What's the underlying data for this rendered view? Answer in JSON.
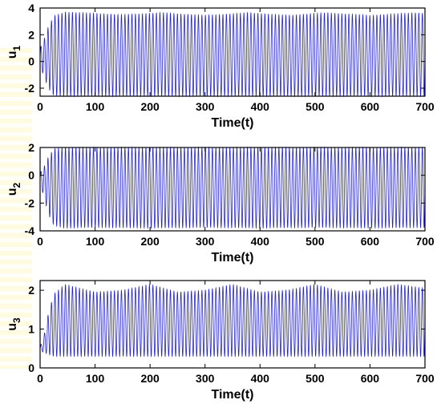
{
  "chart_data": [
    {
      "type": "line",
      "ylabel": "u",
      "ylabel_sub": "1",
      "xlabel": "Time(t)",
      "xlim": [
        0,
        700
      ],
      "ylim": [
        -2.6,
        4
      ],
      "xticks": [
        0,
        100,
        200,
        300,
        400,
        500,
        600,
        700
      ],
      "yticks": [
        -2,
        0,
        2,
        4
      ],
      "grid": false,
      "series": [
        {
          "color": "#2222cc",
          "cycles": 110,
          "upper_envelope": [
            [
              0,
              1.0
            ],
            [
              6,
              1.5
            ],
            [
              15,
              2.6
            ],
            [
              25,
              3.4
            ],
            [
              45,
              3.7
            ],
            [
              100,
              3.6
            ],
            [
              150,
              3.5
            ],
            [
              220,
              3.65
            ],
            [
              300,
              3.45
            ],
            [
              380,
              3.65
            ],
            [
              450,
              3.45
            ],
            [
              520,
              3.65
            ],
            [
              600,
              3.45
            ],
            [
              680,
              3.65
            ],
            [
              700,
              3.6
            ]
          ],
          "lower_envelope": [
            [
              0,
              -0.3
            ],
            [
              6,
              -1.0
            ],
            [
              15,
              -2.0
            ],
            [
              25,
              -2.55
            ],
            [
              45,
              -2.6
            ],
            [
              700,
              -2.6
            ]
          ]
        }
      ]
    },
    {
      "type": "line",
      "ylabel": "u",
      "ylabel_sub": "2",
      "xlabel": "Time(t)",
      "xlim": [
        0,
        700
      ],
      "ylim": [
        -4,
        2
      ],
      "xticks": [
        0,
        100,
        200,
        300,
        400,
        500,
        600,
        700
      ],
      "yticks": [
        -4,
        -2,
        0,
        2
      ],
      "grid": false,
      "series": [
        {
          "color": "#2222cc",
          "cycles": 110,
          "upper_envelope": [
            [
              0,
              0.2
            ],
            [
              6,
              0.5
            ],
            [
              15,
              1.3
            ],
            [
              25,
              1.9
            ],
            [
              45,
              2.0
            ],
            [
              700,
              2.0
            ]
          ],
          "lower_envelope": [
            [
              0,
              -0.6
            ],
            [
              6,
              -1.4
            ],
            [
              15,
              -2.8
            ],
            [
              25,
              -3.6
            ],
            [
              45,
              -3.8
            ],
            [
              100,
              -3.75
            ],
            [
              200,
              -3.8
            ],
            [
              300,
              -3.75
            ],
            [
              400,
              -3.8
            ],
            [
              500,
              -3.75
            ],
            [
              600,
              -3.8
            ],
            [
              700,
              -3.75
            ]
          ]
        }
      ]
    },
    {
      "type": "line",
      "ylabel": "u",
      "ylabel_sub": "3",
      "xlabel": "Time(t)",
      "xlim": [
        0,
        700
      ],
      "ylim": [
        0,
        2.25
      ],
      "xticks": [
        0,
        100,
        200,
        300,
        400,
        500,
        600,
        700
      ],
      "yticks": [
        0,
        1,
        2
      ],
      "grid": false,
      "series": [
        {
          "color": "#2222cc",
          "cycles": 110,
          "upper_envelope": [
            [
              0,
              0.55
            ],
            [
              6,
              0.75
            ],
            [
              15,
              1.4
            ],
            [
              25,
              1.9
            ],
            [
              45,
              2.15
            ],
            [
              100,
              1.95
            ],
            [
              150,
              2.0
            ],
            [
              200,
              2.15
            ],
            [
              250,
              1.95
            ],
            [
              300,
              2.0
            ],
            [
              350,
              2.15
            ],
            [
              400,
              1.95
            ],
            [
              450,
              2.0
            ],
            [
              500,
              2.15
            ],
            [
              550,
              1.95
            ],
            [
              600,
              2.0
            ],
            [
              650,
              2.15
            ],
            [
              700,
              2.05
            ]
          ],
          "lower_envelope": [
            [
              0,
              0.45
            ],
            [
              6,
              0.4
            ],
            [
              15,
              0.35
            ],
            [
              25,
              0.3
            ],
            [
              700,
              0.3
            ]
          ]
        }
      ]
    }
  ]
}
